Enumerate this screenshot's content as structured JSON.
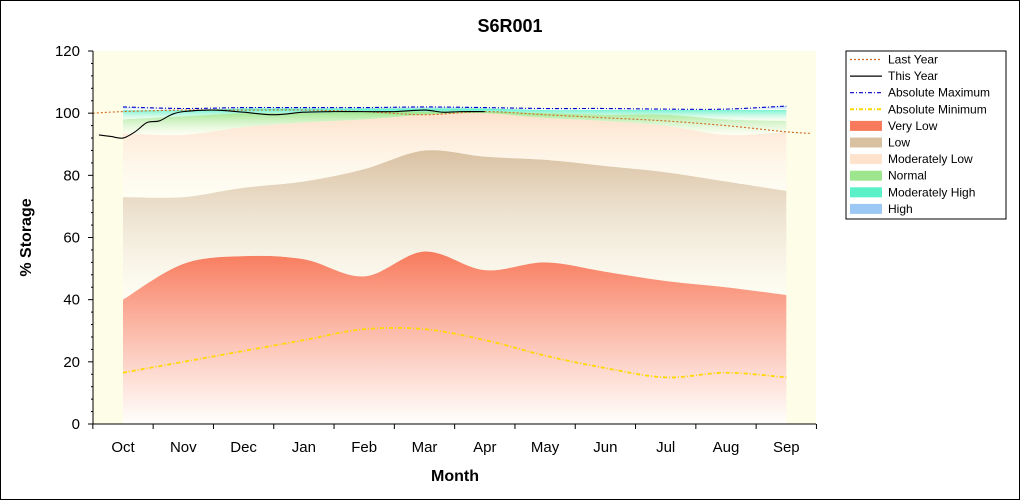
{
  "chart_data": {
    "type": "area",
    "title": "S6R001",
    "xlabel": "Month",
    "ylabel": "% Storage",
    "ylim": [
      0,
      120
    ],
    "yticks": [
      0,
      20,
      40,
      60,
      80,
      100,
      120
    ],
    "categories": [
      "Oct",
      "Nov",
      "Dec",
      "Jan",
      "Feb",
      "Mar",
      "Apr",
      "May",
      "Jun",
      "Jul",
      "Aug",
      "Sep"
    ],
    "legend_position": "right",
    "bands": [
      {
        "name": "Very Low",
        "color": "#f87a5c",
        "lower": [
          0,
          0,
          0,
          0,
          0,
          0,
          0,
          0,
          0,
          0,
          0,
          0
        ],
        "upper": [
          40,
          51.5,
          54,
          53,
          47.5,
          55.5,
          49.5,
          52,
          49,
          46,
          44,
          41.5
        ]
      },
      {
        "name": "Low",
        "color": "#d9c0a1",
        "lower": [
          40,
          51.5,
          54,
          53,
          47.5,
          55.5,
          49.5,
          52,
          49,
          46,
          44,
          41.5
        ],
        "upper": [
          73,
          73,
          76,
          78,
          82,
          88,
          86,
          85,
          83,
          81,
          78,
          75
        ]
      },
      {
        "name": "Moderately Low",
        "color": "#fde2cc",
        "lower": [
          73,
          73,
          76,
          78,
          82,
          88,
          86,
          85,
          83,
          81,
          78,
          75
        ],
        "upper": [
          93.5,
          93,
          95.5,
          97,
          98,
          99.5,
          100,
          98.5,
          97.5,
          96,
          93,
          94
        ]
      },
      {
        "name": "Normal",
        "color": "#9ee68e",
        "lower": [
          93.5,
          93,
          95.5,
          97,
          98,
          99.5,
          100,
          98.5,
          97.5,
          96,
          93,
          94
        ],
        "upper": [
          98,
          99,
          100,
          100,
          100.5,
          100.5,
          100.5,
          100,
          99.5,
          99.5,
          98,
          97.5
        ]
      },
      {
        "name": "Moderately High",
        "color": "#5af0c8",
        "lower": [
          98,
          99,
          100,
          100,
          100.5,
          100.5,
          100.5,
          100,
          99.5,
          99.5,
          98,
          97.5
        ],
        "upper": [
          101,
          101,
          101.5,
          101.5,
          101.5,
          101.5,
          101.5,
          101,
          101,
          101,
          101,
          101
        ]
      },
      {
        "name": "High",
        "color": "#9cc8f5",
        "lower": [
          101,
          101,
          101.5,
          101.5,
          101.5,
          101.5,
          101.5,
          101,
          101,
          101,
          101,
          101
        ],
        "upper": [
          102,
          101.5,
          101.8,
          101.8,
          101.8,
          102,
          101.8,
          101.5,
          101.5,
          101.3,
          101.3,
          102.3
        ]
      }
    ],
    "series": [
      {
        "name": "Last Year",
        "color": "#d2691e",
        "style": "dotted",
        "x": [
          -0.5,
          0,
          1,
          2,
          3,
          4,
          5,
          6,
          7,
          8,
          9,
          10,
          11,
          11.4
        ],
        "y": [
          100,
          100.5,
          101,
          101,
          101,
          100.5,
          99.5,
          100.5,
          99.5,
          98.5,
          97.5,
          96,
          94,
          93.5
        ]
      },
      {
        "name": "This Year",
        "color": "#000000",
        "style": "solid",
        "x": [
          -0.4,
          -0.2,
          0,
          0.2,
          0.4,
          0.6,
          0.8,
          1,
          1.5,
          2,
          2.5,
          3,
          3.5,
          4,
          4.5,
          5,
          5.3,
          5.6,
          6
        ],
        "y": [
          93,
          92.5,
          92,
          94,
          97,
          97.5,
          99.5,
          100.5,
          101,
          100.3,
          99.5,
          100.3,
          100.5,
          100.5,
          100.5,
          101,
          100.3,
          100.5,
          100.5
        ]
      },
      {
        "name": "Absolute Maximum",
        "color": "#0000cd",
        "style": "dashdot",
        "x": [
          0,
          1,
          2,
          3,
          4,
          5,
          6,
          7,
          8,
          9,
          10,
          11
        ],
        "y": [
          102,
          101.5,
          101.8,
          101.8,
          101.8,
          102,
          101.8,
          101.5,
          101.5,
          101.3,
          101.3,
          102.3
        ]
      },
      {
        "name": "Absolute Minimum",
        "color": "#ffd700",
        "style": "dashdot",
        "x": [
          0,
          1,
          2,
          3,
          4,
          5,
          6,
          7,
          8,
          9,
          10,
          11
        ],
        "y": [
          16.5,
          20,
          23.5,
          27,
          30.5,
          30.5,
          27,
          22,
          18,
          15,
          16.5,
          15
        ]
      }
    ],
    "legend": [
      {
        "name": "Last Year",
        "kind": "line",
        "color": "#d2691e",
        "style": "dotted"
      },
      {
        "name": "This Year",
        "kind": "line",
        "color": "#000000",
        "style": "solid"
      },
      {
        "name": "Absolute Maximum",
        "kind": "line",
        "color": "#0000cd",
        "style": "dashdot"
      },
      {
        "name": "Absolute Minimum",
        "kind": "line",
        "color": "#ffd700",
        "style": "dashdot"
      },
      {
        "name": "Very Low",
        "kind": "box",
        "color": "#f87a5c"
      },
      {
        "name": "Low",
        "kind": "box",
        "color": "#d9c0a1"
      },
      {
        "name": "Moderately Low",
        "kind": "box",
        "color": "#fde2cc"
      },
      {
        "name": "Normal",
        "kind": "box",
        "color": "#9ee68e"
      },
      {
        "name": "Moderately High",
        "kind": "box",
        "color": "#5af0c8"
      },
      {
        "name": "High",
        "kind": "box",
        "color": "#9cc8f5"
      }
    ],
    "colors": {
      "plot_background": "#fdfde8",
      "frame": "#000000"
    }
  }
}
